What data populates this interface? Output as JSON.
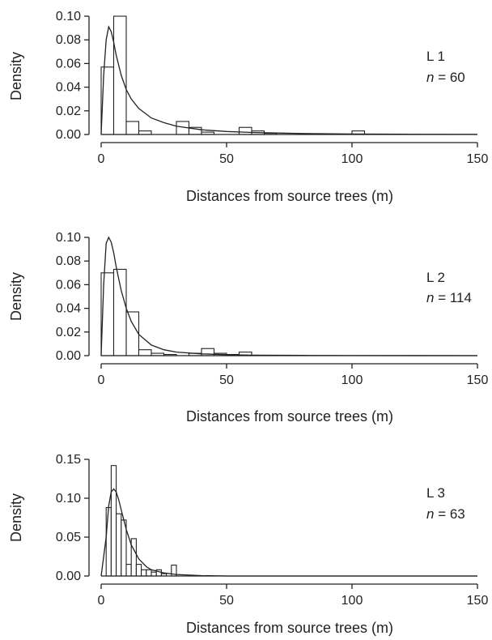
{
  "chart_data": [
    {
      "type": "bar",
      "panel": "L 1",
      "annotation": {
        "label": "L 1",
        "n_prefix": "n",
        "n_text": " = 60"
      },
      "xlabel": "Distances from source trees (m)",
      "ylabel": "Density",
      "xlim": [
        0,
        150
      ],
      "ylim": [
        0,
        0.1
      ],
      "xticks": [
        0,
        50,
        100,
        150
      ],
      "yticks": [
        "0.00",
        "0.02",
        "0.04",
        "0.06",
        "0.08",
        "0.10"
      ],
      "grid": false,
      "bin_width": 5,
      "bins": [
        {
          "x0": 0,
          "x1": 5,
          "density": 0.057
        },
        {
          "x0": 5,
          "x1": 10,
          "density": 0.1
        },
        {
          "x0": 10,
          "x1": 15,
          "density": 0.011
        },
        {
          "x0": 15,
          "x1": 20,
          "density": 0.003
        },
        {
          "x0": 30,
          "x1": 35,
          "density": 0.011
        },
        {
          "x0": 35,
          "x1": 40,
          "density": 0.006
        },
        {
          "x0": 40,
          "x1": 45,
          "density": 0.002
        },
        {
          "x0": 55,
          "x1": 60,
          "density": 0.006
        },
        {
          "x0": 60,
          "x1": 65,
          "density": 0.003
        },
        {
          "x0": 65,
          "x1": 70,
          "density": 0.001
        },
        {
          "x0": 100,
          "x1": 105,
          "density": 0.003
        }
      ],
      "density_curve": {
        "x": [
          0,
          1,
          2,
          3,
          4,
          5,
          6,
          8,
          10,
          12,
          15,
          20,
          25,
          30,
          40,
          50,
          60,
          70,
          80,
          100,
          120,
          150
        ],
        "y": [
          0.0,
          0.05,
          0.08,
          0.091,
          0.087,
          0.078,
          0.067,
          0.05,
          0.038,
          0.03,
          0.022,
          0.014,
          0.01,
          0.007,
          0.004,
          0.0025,
          0.0017,
          0.0012,
          0.0008,
          0.0004,
          0.0002,
          0.0001
        ]
      }
    },
    {
      "type": "bar",
      "panel": "L 2",
      "annotation": {
        "label": "L 2",
        "n_prefix": "n",
        "n_text": " = 114"
      },
      "xlabel": "Distances from source trees (m)",
      "ylabel": "Density",
      "xlim": [
        0,
        150
      ],
      "ylim": [
        0,
        0.1
      ],
      "xticks": [
        0,
        50,
        100,
        150
      ],
      "yticks": [
        "0.00",
        "0.02",
        "0.04",
        "0.06",
        "0.08",
        "0.10"
      ],
      "grid": false,
      "bin_width": 5,
      "bins": [
        {
          "x0": 0,
          "x1": 5,
          "density": 0.07
        },
        {
          "x0": 5,
          "x1": 10,
          "density": 0.073
        },
        {
          "x0": 10,
          "x1": 15,
          "density": 0.037
        },
        {
          "x0": 15,
          "x1": 20,
          "density": 0.005
        },
        {
          "x0": 20,
          "x1": 25,
          "density": 0.002
        },
        {
          "x0": 25,
          "x1": 30,
          "density": 0.001
        },
        {
          "x0": 35,
          "x1": 40,
          "density": 0.002
        },
        {
          "x0": 40,
          "x1": 45,
          "density": 0.006
        },
        {
          "x0": 45,
          "x1": 50,
          "density": 0.002
        },
        {
          "x0": 50,
          "x1": 55,
          "density": 0.001
        },
        {
          "x0": 55,
          "x1": 60,
          "density": 0.003
        }
      ],
      "density_curve": {
        "x": [
          0,
          1,
          2,
          3,
          4,
          5,
          6,
          8,
          10,
          12,
          15,
          20,
          25,
          30,
          40,
          50,
          60,
          80,
          100,
          150
        ],
        "y": [
          0.0,
          0.06,
          0.095,
          0.1,
          0.096,
          0.087,
          0.075,
          0.055,
          0.04,
          0.029,
          0.018,
          0.009,
          0.005,
          0.003,
          0.0015,
          0.0008,
          0.0004,
          0.0002,
          0.0001,
          0.0
        ]
      }
    },
    {
      "type": "bar",
      "panel": "L 3",
      "annotation": {
        "label": "L 3",
        "n_prefix": "n",
        "n_text": " = 63"
      },
      "xlabel": "Distances from source trees (m)",
      "ylabel": "Density",
      "xlim": [
        0,
        150
      ],
      "ylim": [
        0,
        0.15
      ],
      "xticks": [
        0,
        50,
        100,
        150
      ],
      "yticks": [
        "0.00",
        "0.05",
        "0.10",
        "0.15"
      ],
      "grid": false,
      "bin_width": 2,
      "bins": [
        {
          "x0": 2,
          "x1": 4,
          "density": 0.088
        },
        {
          "x0": 4,
          "x1": 6,
          "density": 0.142
        },
        {
          "x0": 6,
          "x1": 8,
          "density": 0.08
        },
        {
          "x0": 8,
          "x1": 10,
          "density": 0.072
        },
        {
          "x0": 10,
          "x1": 12,
          "density": 0.015
        },
        {
          "x0": 12,
          "x1": 14,
          "density": 0.048
        },
        {
          "x0": 14,
          "x1": 16,
          "density": 0.015
        },
        {
          "x0": 16,
          "x1": 18,
          "density": 0.008
        },
        {
          "x0": 18,
          "x1": 20,
          "density": 0.008
        },
        {
          "x0": 20,
          "x1": 22,
          "density": 0.005
        },
        {
          "x0": 22,
          "x1": 24,
          "density": 0.008
        },
        {
          "x0": 24,
          "x1": 26,
          "density": 0.003
        },
        {
          "x0": 28,
          "x1": 30,
          "density": 0.014
        }
      ],
      "density_curve": {
        "x": [
          0,
          2,
          3,
          4,
          5,
          6,
          7,
          8,
          10,
          12,
          15,
          18,
          20,
          25,
          30,
          40,
          50,
          150
        ],
        "y": [
          0.0,
          0.05,
          0.09,
          0.108,
          0.112,
          0.108,
          0.098,
          0.085,
          0.06,
          0.04,
          0.022,
          0.012,
          0.008,
          0.004,
          0.002,
          0.0005,
          0.0,
          0.0
        ]
      }
    }
  ]
}
